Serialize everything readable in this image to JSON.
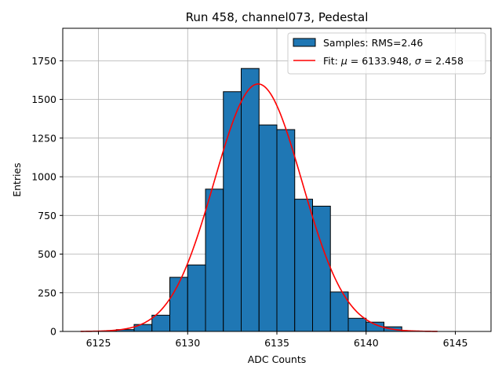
{
  "chart_data": {
    "type": "bar",
    "title": "Run 458, channel073, Pedestal",
    "xlabel": "ADC Counts",
    "ylabel": "Entries",
    "xlim": [
      6123.0,
      6147.0
    ],
    "ylim": [
      0,
      1960
    ],
    "xticks": [
      6125,
      6130,
      6135,
      6140,
      6145
    ],
    "yticks": [
      0,
      250,
      500,
      750,
      1000,
      1250,
      1500,
      1750
    ],
    "grid": true,
    "legend_position": "top-right",
    "bar_color": "#1f77b4",
    "fit_color": "#ff0000",
    "series": [
      {
        "name": "Samples: RMS=2.46",
        "kind": "histogram",
        "bin_width": 1,
        "bins": [
          {
            "left": 6125,
            "count": 2
          },
          {
            "left": 6126,
            "count": 12
          },
          {
            "left": 6127,
            "count": 45
          },
          {
            "left": 6128,
            "count": 105
          },
          {
            "left": 6129,
            "count": 350
          },
          {
            "left": 6130,
            "count": 430
          },
          {
            "left": 6131,
            "count": 920
          },
          {
            "left": 6132,
            "count": 1550
          },
          {
            "left": 6133,
            "count": 1700
          },
          {
            "left": 6134,
            "count": 1335
          },
          {
            "left": 6135,
            "count": 1305
          },
          {
            "left": 6136,
            "count": 855
          },
          {
            "left": 6137,
            "count": 810
          },
          {
            "left": 6138,
            "count": 255
          },
          {
            "left": 6139,
            "count": 85
          },
          {
            "left": 6140,
            "count": 60
          },
          {
            "left": 6141,
            "count": 30
          },
          {
            "left": 6142,
            "count": 3
          }
        ]
      },
      {
        "name_prefix": "Fit: ",
        "name_mu_symbol": "μ",
        "name_mu_value": " = 6133.948, ",
        "name_sigma_symbol": "σ",
        "name_sigma_value": " = 2.458",
        "kind": "gaussian",
        "mu": 6133.948,
        "sigma": 2.458,
        "amplitude": 1600,
        "x_range": [
          6124,
          6144
        ]
      }
    ]
  }
}
